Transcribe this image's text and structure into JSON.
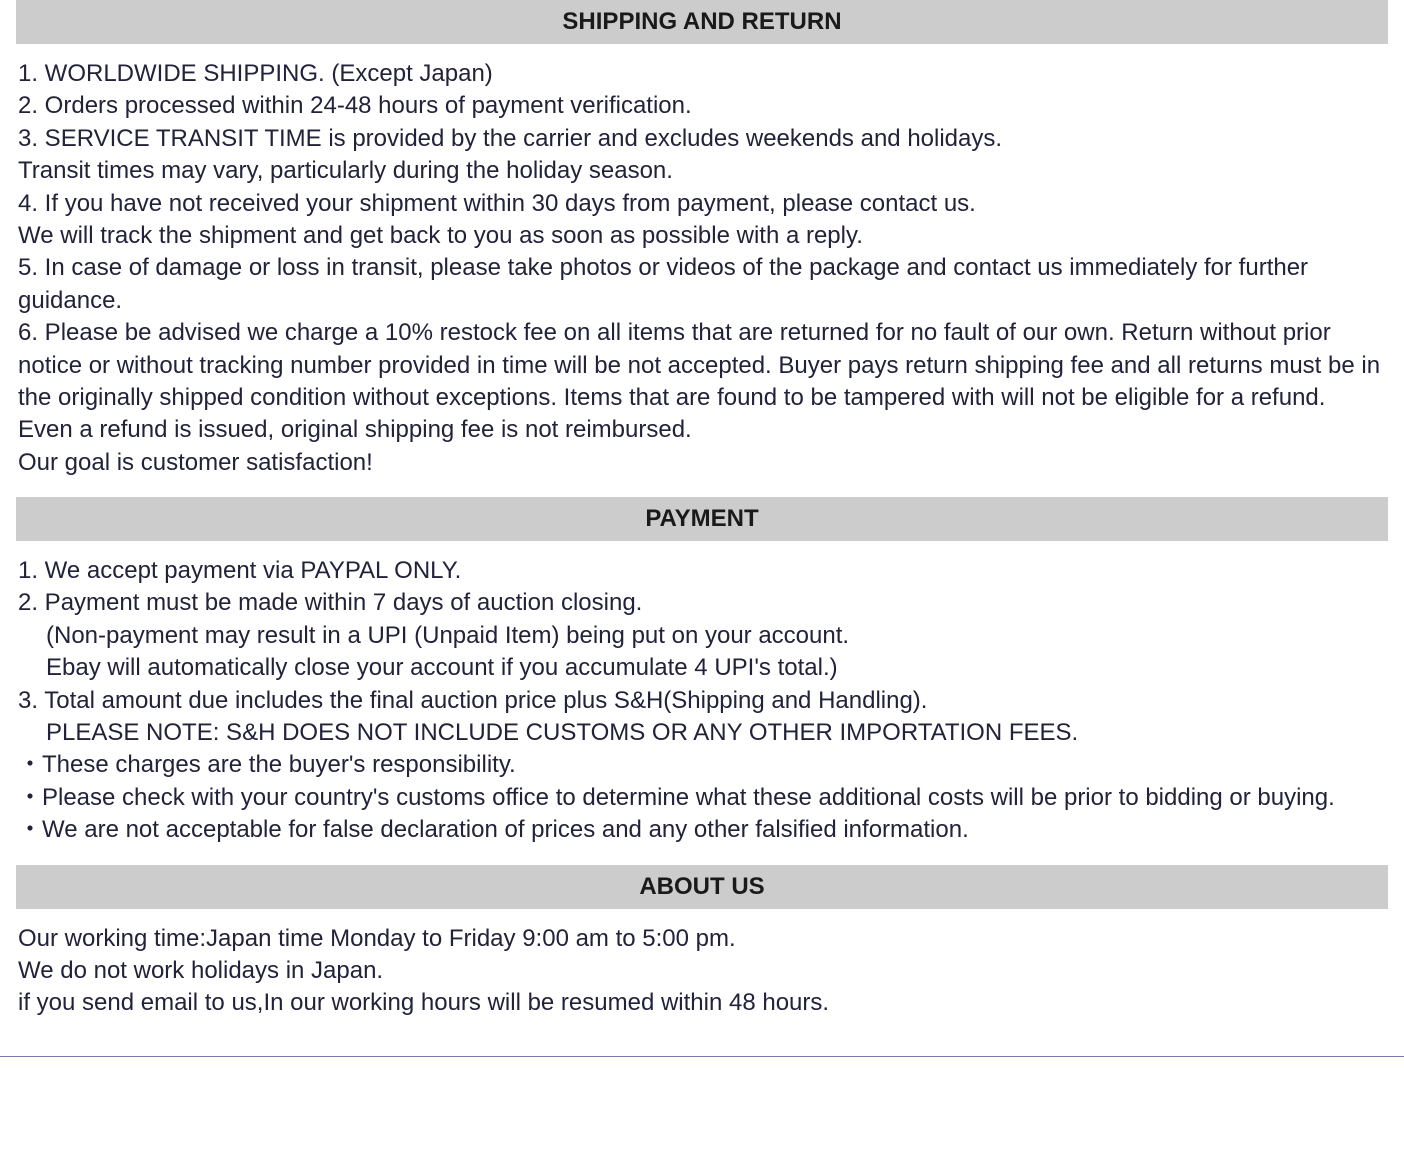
{
  "styles": {
    "header_bg": "#cccccc",
    "header_color": "#1a1a1a",
    "body_color": "#22223a",
    "font_size_header": 24,
    "font_size_body": 24,
    "rule_color": "#7a7ab0"
  },
  "sections": {
    "shipping": {
      "title": "SHIPPING AND RETURN",
      "lines": [
        "1. WORLDWIDE SHIPPING. (Except Japan)",
        "2. Orders processed within 24-48 hours of payment verification.",
        "3. SERVICE TRANSIT TIME is provided by the carrier and excludes weekends and holidays.",
        "Transit times may vary, particularly during the holiday season.",
        "4. If you have not received your shipment within 30 days from payment, please contact us.",
        "We will track the shipment and get back to you as soon as possible with a reply.",
        "5. In case of damage or loss in transit, please take photos or videos of the package and contact us immediately for further guidance.",
        "6. Please be advised we charge a 10% restock fee on all items that are returned for no fault of our own. Return without prior notice or without tracking number provided in time will be not accepted. Buyer pays return shipping fee and all returns must be in the originally shipped condition without exceptions. Items that are found to be tampered with will not be eligible for a refund. Even a refund is issued, original shipping fee is not reimbursed.",
        "Our goal is customer satisfaction!"
      ]
    },
    "payment": {
      "title": "PAYMENT",
      "lines": [
        "1. We accept payment via PAYPAL ONLY.",
        "2. Payment must be made within 7 days of auction closing.",
        "    (Non-payment may result in a UPI (Unpaid Item) being put on your account.",
        "    Ebay will automatically close your account if you accumulate 4 UPI's total.)",
        "3. Total amount due includes the final auction price plus S&H(Shipping and Handling).",
        "    PLEASE NOTE: S&H DOES NOT INCLUDE CUSTOMS OR ANY OTHER IMPORTATION FEES.",
        "・These charges are the buyer's responsibility.",
        " ・Please check with your country's customs office to determine what these additional costs will be prior to bidding or buying.",
        " ・We are not acceptable for false declaration of prices and any other falsified information."
      ],
      "indented": [
        2,
        3,
        5
      ]
    },
    "about": {
      "title": "ABOUT US",
      "lines": [
        "Our working time:Japan time Monday to Friday 9:00 am to 5:00 pm.",
        "We do not work holidays in Japan.",
        "if you send email to us,In our working hours will be resumed within 48 hours."
      ]
    }
  }
}
